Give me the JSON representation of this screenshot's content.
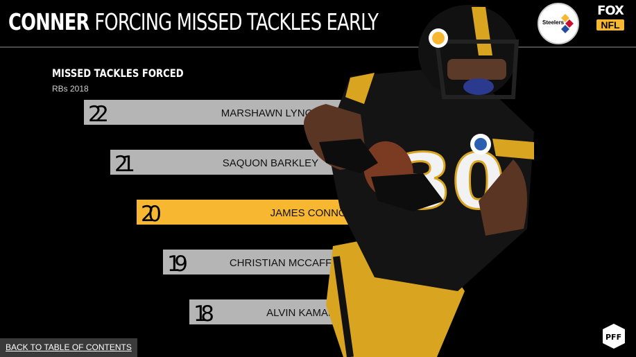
{
  "header": {
    "title_name": "CONNER",
    "title_rest": "FORCING MISSED TACKLES EARLY"
  },
  "logos": {
    "team_label": "Steelers",
    "network_top": "FOX",
    "network_bottom": "NFL"
  },
  "footer": {
    "back_link": "BACK TO TABLE OF CONTENTS"
  },
  "colors": {
    "bar_default": "#b5b5b5",
    "bar_highlight": "#f7b731",
    "background": "#000000"
  },
  "chart_data": {
    "type": "bar",
    "orientation": "horizontal",
    "title": "MISSED TACKLES FORCED",
    "subtitle": "RBs 2018",
    "categories": [
      "MARSHAWN LYNCH",
      "SAQUON BARKLEY",
      "JAMES CONNOR",
      "CHRISTIAN MCCAFFREY",
      "ALVIN KAMARA"
    ],
    "values": [
      22,
      21,
      20,
      19,
      18
    ],
    "highlight": "JAMES CONNOR",
    "xlim": [
      14,
      23
    ]
  }
}
